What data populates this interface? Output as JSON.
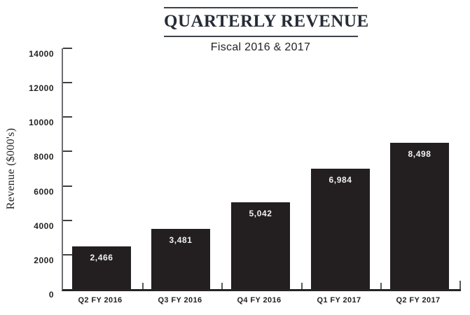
{
  "header": {
    "title": "QUARTERLY REVENUE",
    "subtitle": "Fiscal 2016 & 2017"
  },
  "chart_data": {
    "type": "bar",
    "title": "QUARTERLY REVENUE",
    "subtitle": "Fiscal 2016 & 2017",
    "xlabel": "",
    "ylabel": "Revenue ($000's)",
    "categories": [
      "Q2 FY 2016",
      "Q3 FY 2016",
      "Q4 FY 2016",
      "Q1 FY 2017",
      "Q2 FY 2017"
    ],
    "values": [
      2466,
      3481,
      5042,
      6984,
      8498
    ],
    "value_labels": [
      "2,466",
      "3,481",
      "5,042",
      "6,984",
      "8,498"
    ],
    "ylim": [
      0,
      14000
    ],
    "ytick_step": 2000,
    "ytick_labels": [
      "0",
      "2000",
      "4000",
      "6000",
      "8000",
      "10000",
      "12000",
      "14000"
    ],
    "grid": false,
    "legend": null,
    "value_label_position": "inside-top",
    "colors": {
      "bar": "#231f20",
      "bar_label_text": "#f2f2f2",
      "axis_line": "#6d6e71",
      "baseline": "#262324",
      "tick": "#414042",
      "text": "#231f20",
      "title_text": "#262c36"
    }
  }
}
